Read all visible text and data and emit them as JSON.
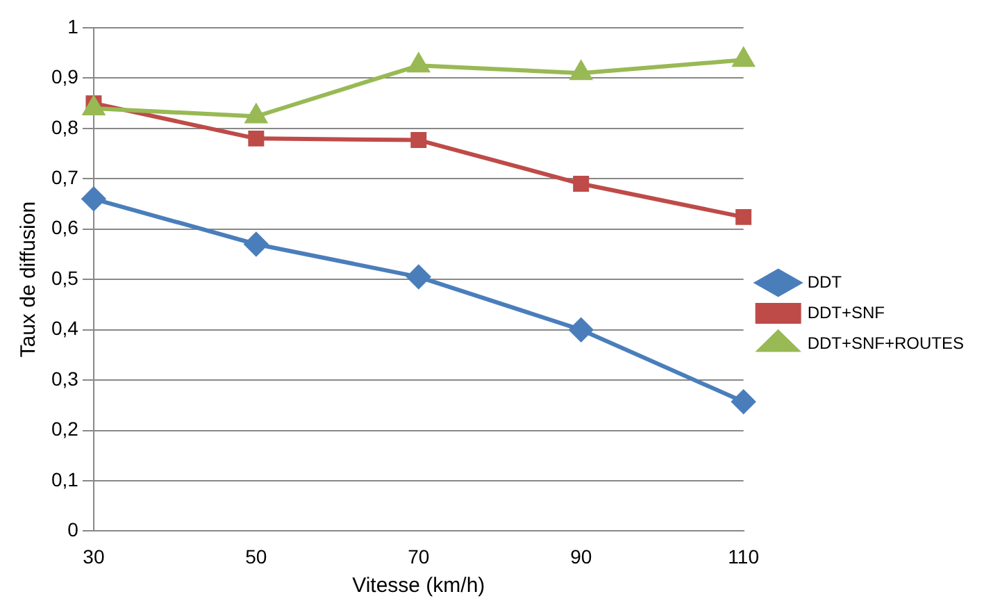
{
  "chart_data": {
    "type": "line",
    "xlabel": "Vitesse (km/h)",
    "ylabel": "Taux de diffusion",
    "categories": [
      "30",
      "50",
      "70",
      "90",
      "110"
    ],
    "series": [
      {
        "name": "DDT",
        "color": "#4a7ebb",
        "marker": "diamond",
        "values": [
          0.66,
          0.57,
          0.505,
          0.4,
          0.257
        ]
      },
      {
        "name": "DDT+SNF",
        "color": "#be4b48",
        "marker": "square",
        "values": [
          0.85,
          0.78,
          0.777,
          0.69,
          0.624
        ]
      },
      {
        "name": "DDT+SNF+ROUTES",
        "color": "#98b954",
        "marker": "triangle",
        "values": [
          0.84,
          0.824,
          0.925,
          0.91,
          0.936
        ]
      }
    ],
    "ylim": [
      0,
      1
    ],
    "yticks": [
      {
        "value": 0,
        "label": "0"
      },
      {
        "value": 0.1,
        "label": "0,1"
      },
      {
        "value": 0.2,
        "label": "0,2"
      },
      {
        "value": 0.3,
        "label": "0,3"
      },
      {
        "value": 0.4,
        "label": "0,4"
      },
      {
        "value": 0.5,
        "label": "0,5"
      },
      {
        "value": 0.6,
        "label": "0,6"
      },
      {
        "value": 0.7,
        "label": "0,7"
      },
      {
        "value": 0.8,
        "label": "0,8"
      },
      {
        "value": 0.9,
        "label": "0,9"
      },
      {
        "value": 1,
        "label": "1"
      }
    ],
    "grid": "y",
    "legend": "right",
    "line_style": "solid"
  }
}
